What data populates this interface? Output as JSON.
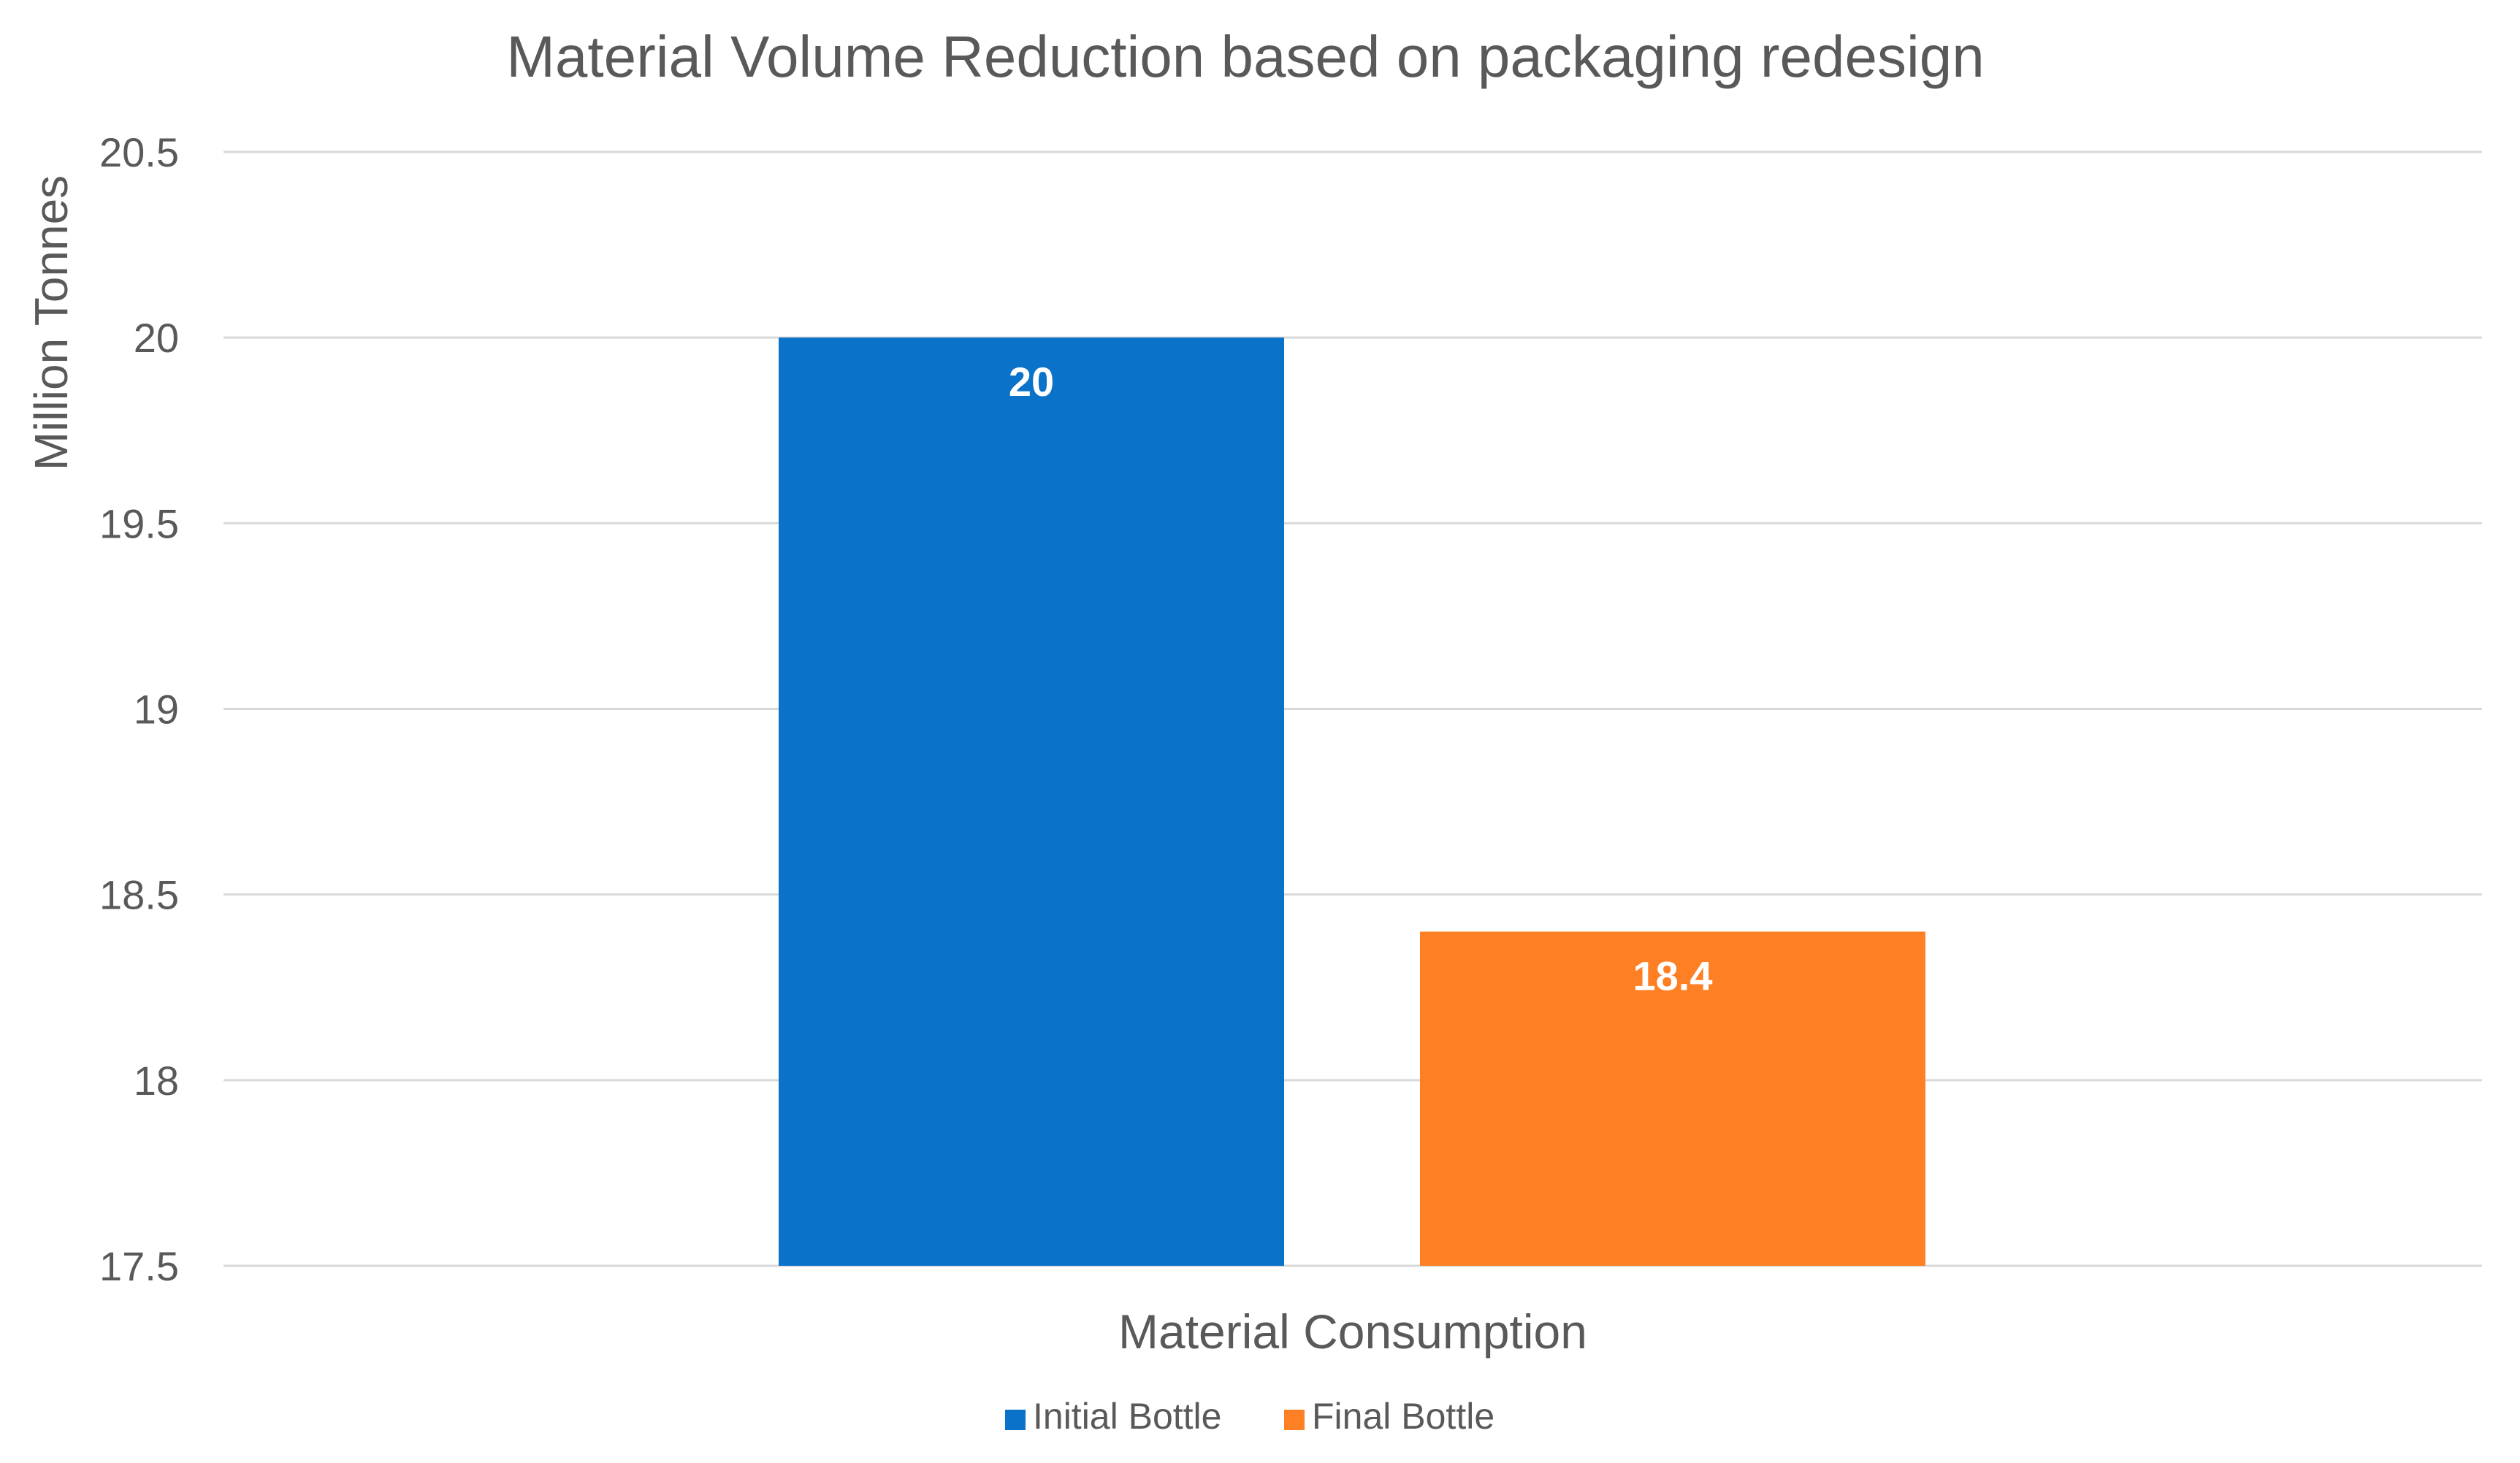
{
  "chart_data": {
    "type": "bar",
    "title": "Material Volume Reduction based on packaging redesign",
    "xlabel": "Material Consumption",
    "ylabel": "Million Tonnes",
    "categories": [
      "Material Consumption"
    ],
    "series": [
      {
        "name": "Initial Bottle",
        "values": [
          20
        ],
        "color": "#0A72C8",
        "label": "20"
      },
      {
        "name": "Final Bottle",
        "values": [
          18.4
        ],
        "color": "#FF7F24",
        "label": "18.4"
      }
    ],
    "ylim": [
      17.5,
      20.5
    ],
    "yticks": [
      17.5,
      18,
      18.5,
      19,
      19.5,
      20,
      20.5
    ],
    "ytick_labels": [
      "17.5",
      "18",
      "18.5",
      "19",
      "19.5",
      "20",
      "20.5"
    ],
    "grid": true,
    "legend_position": "bottom-center",
    "colors": {
      "gridline": "#D9D9D9",
      "text": "#595959",
      "data_label": "#FFFFFF"
    }
  }
}
